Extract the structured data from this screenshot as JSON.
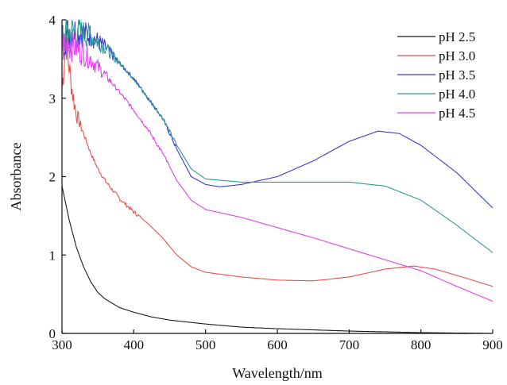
{
  "chart_data": {
    "type": "line",
    "title": "",
    "xlabel": "Wavelength/nm",
    "ylabel": "Absorbance",
    "xlim": [
      300,
      900
    ],
    "ylim": [
      0,
      4
    ],
    "xticks": [
      300,
      400,
      500,
      600,
      700,
      800,
      900
    ],
    "yticks": [
      0,
      1,
      2,
      3,
      4
    ],
    "grid": false,
    "legend_position": "top-right",
    "series": [
      {
        "name": "pH 2.5",
        "color": "#1a1a1a",
        "noisy_below": null,
        "x": [
          300,
          310,
          320,
          330,
          340,
          350,
          360,
          380,
          400,
          425,
          450,
          500,
          550,
          600,
          700,
          800,
          900
        ],
        "y": [
          1.88,
          1.45,
          1.1,
          0.85,
          0.66,
          0.52,
          0.44,
          0.33,
          0.27,
          0.21,
          0.17,
          0.12,
          0.08,
          0.06,
          0.03,
          0.01,
          0.0
        ]
      },
      {
        "name": "pH 3.0",
        "color": "#e8524a",
        "noisy_below": 330,
        "x": [
          300,
          305,
          310,
          315,
          320,
          330,
          340,
          350,
          360,
          380,
          400,
          420,
          440,
          460,
          480,
          500,
          550,
          600,
          650,
          700,
          750,
          790,
          820,
          850,
          900
        ],
        "y": [
          3.1,
          3.75,
          3.4,
          3.05,
          2.8,
          2.55,
          2.3,
          2.1,
          1.95,
          1.72,
          1.55,
          1.4,
          1.22,
          1.0,
          0.85,
          0.78,
          0.72,
          0.68,
          0.67,
          0.72,
          0.82,
          0.86,
          0.82,
          0.74,
          0.6
        ]
      },
      {
        "name": "pH 3.5",
        "color": "#3a3ad4",
        "noisy_below": 380,
        "x": [
          300,
          310,
          320,
          340,
          360,
          380,
          400,
          420,
          440,
          460,
          480,
          500,
          520,
          550,
          600,
          650,
          700,
          740,
          770,
          800,
          850,
          900
        ],
        "y": [
          3.75,
          3.85,
          3.85,
          3.8,
          3.65,
          3.45,
          3.25,
          3.0,
          2.75,
          2.35,
          2.0,
          1.9,
          1.87,
          1.9,
          2.0,
          2.2,
          2.45,
          2.58,
          2.55,
          2.4,
          2.05,
          1.6
        ]
      },
      {
        "name": "pH 4.0",
        "color": "#2a9a96",
        "noisy_below": 380,
        "x": [
          300,
          310,
          320,
          340,
          360,
          380,
          400,
          420,
          440,
          460,
          480,
          500,
          550,
          600,
          650,
          700,
          750,
          800,
          850,
          900
        ],
        "y": [
          3.75,
          3.85,
          3.85,
          3.8,
          3.65,
          3.45,
          3.25,
          3.0,
          2.75,
          2.4,
          2.1,
          1.97,
          1.93,
          1.93,
          1.93,
          1.93,
          1.88,
          1.7,
          1.38,
          1.03
        ]
      },
      {
        "name": "pH 4.5",
        "color": "#e040e8",
        "noisy_below": 370,
        "x": [
          300,
          310,
          320,
          340,
          360,
          380,
          400,
          420,
          440,
          460,
          480,
          500,
          550,
          600,
          650,
          700,
          750,
          800,
          850,
          900
        ],
        "y": [
          3.65,
          3.7,
          3.65,
          3.5,
          3.3,
          3.08,
          2.85,
          2.6,
          2.3,
          1.95,
          1.7,
          1.58,
          1.48,
          1.35,
          1.22,
          1.08,
          0.94,
          0.8,
          0.6,
          0.41
        ]
      }
    ]
  }
}
